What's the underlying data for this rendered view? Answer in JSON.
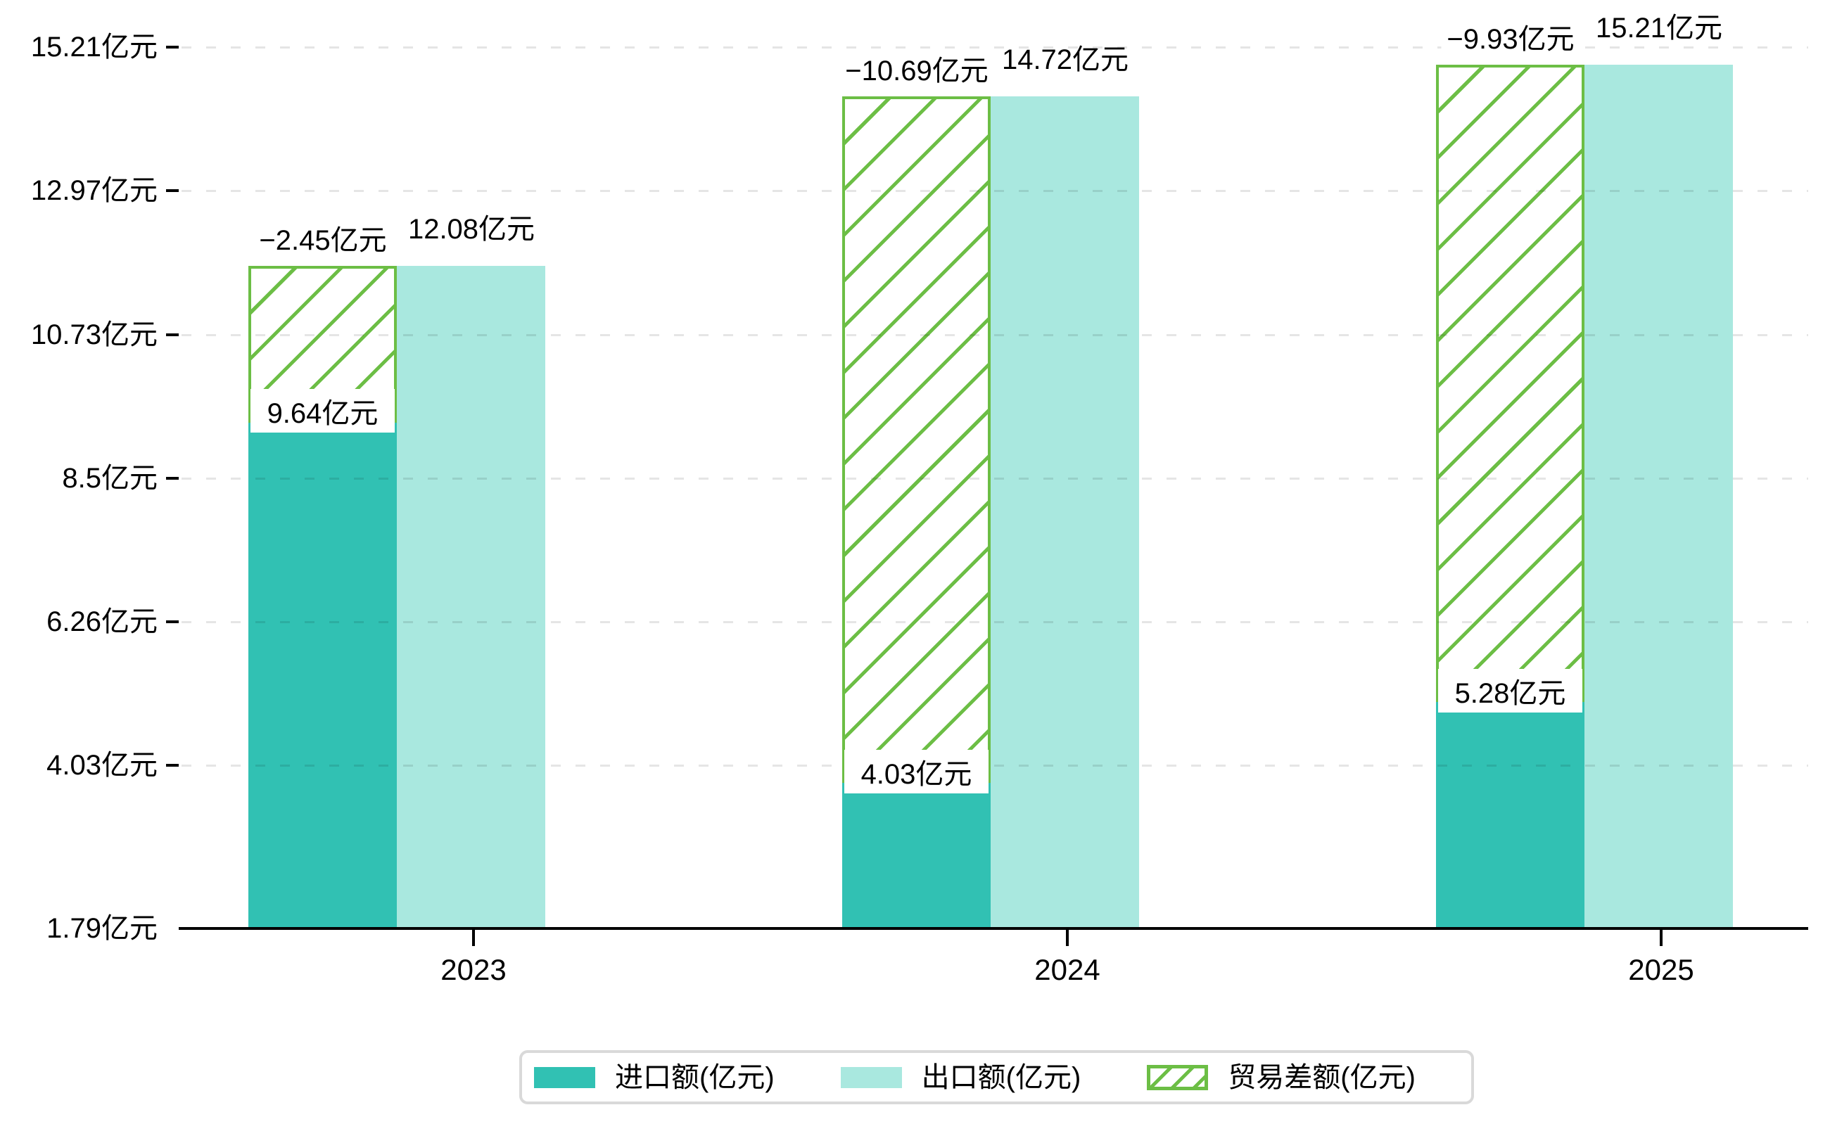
{
  "chart_data": {
    "type": "bar",
    "title": "",
    "categories": [
      "2023",
      "2024",
      "2025"
    ],
    "series": [
      {
        "name": "进口额(亿元)",
        "role": "import",
        "values": [
          9.64,
          4.03,
          5.28
        ],
        "labels": [
          "9.64亿元",
          "4.03亿元",
          "5.28亿元"
        ],
        "color": "#31c1b3",
        "style": "solid"
      },
      {
        "name": "出口额(亿元)",
        "role": "export",
        "values": [
          12.08,
          14.72,
          15.21
        ],
        "labels": [
          "12.08亿元",
          "14.72亿元",
          "15.21亿元"
        ],
        "color": "#a9e8df",
        "style": "solid"
      },
      {
        "name": "贸易差额(亿元)",
        "role": "trade-balance",
        "values": [
          -2.45,
          -10.69,
          -9.93
        ],
        "labels": [
          "−2.45亿元",
          "−10.69亿元",
          "−9.93亿元"
        ],
        "color": "#6cbe45",
        "style": "hatched"
      }
    ],
    "y_axis": {
      "unit": "亿元",
      "range": [
        1.79,
        15.21
      ],
      "tick_values": [
        1.79,
        4.03,
        6.26,
        8.5,
        10.73,
        12.97,
        15.21
      ],
      "tick_labels": [
        "1.79亿元",
        "4.03亿元",
        "6.26亿元",
        "8.5亿元",
        "10.73亿元",
        "12.97亿元",
        "15.21亿元"
      ]
    },
    "x_axis": {
      "tick_labels": [
        "2023",
        "2024",
        "2025"
      ]
    },
    "legend": {
      "position": "bottom-center",
      "items": [
        "进口额(亿元)",
        "出口额(亿元)",
        "贸易差额(亿元)"
      ]
    },
    "grid": "horizontal-dashed",
    "background": "#ffffff"
  }
}
